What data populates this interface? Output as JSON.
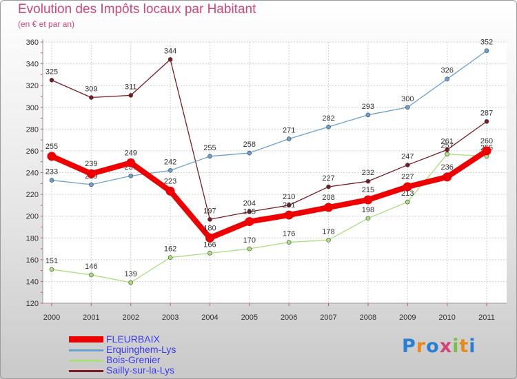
{
  "title": "Evolution des Impôts locaux par Habitant",
  "subtitle": "(en € et par an)",
  "brand": "Proxiti",
  "chart_data": {
    "type": "line",
    "x": [
      "2000",
      "2001",
      "2002",
      "2003",
      "2004",
      "2005",
      "2006",
      "2007",
      "2008",
      "2009",
      "2010",
      "2011"
    ],
    "yticks": [
      120,
      140,
      160,
      180,
      200,
      220,
      240,
      260,
      280,
      300,
      320,
      340,
      360
    ],
    "ylim": [
      120,
      360
    ],
    "grid": true,
    "legend_position": "bottom-left",
    "series": [
      {
        "name": "Sailly-sur-la-Lys",
        "color": "#7a1a24",
        "values": [
          325,
          309,
          311,
          344,
          197,
          204,
          210,
          227,
          232,
          247,
          261,
          287
        ]
      },
      {
        "name": "Bois-Grenier",
        "color": "#a8e07a",
        "values": [
          151,
          146,
          139,
          162,
          166,
          170,
          176,
          178,
          198,
          213,
          257,
          255
        ]
      },
      {
        "name": "Erquinghem-Lys",
        "color": "#6aa0d0",
        "values": [
          233,
          229,
          237,
          242,
          255,
          258,
          271,
          282,
          293,
          300,
          326,
          352
        ]
      },
      {
        "name": "FLEURBAIX",
        "color": "#ee0000",
        "values": [
          255,
          239,
          249,
          223,
          180,
          195,
          201,
          208,
          215,
          227,
          236,
          260
        ]
      }
    ]
  },
  "legend": [
    "FLEURBAIX",
    "Erquinghem-Lys",
    "Bois-Grenier",
    "Sailly-sur-la-Lys"
  ]
}
